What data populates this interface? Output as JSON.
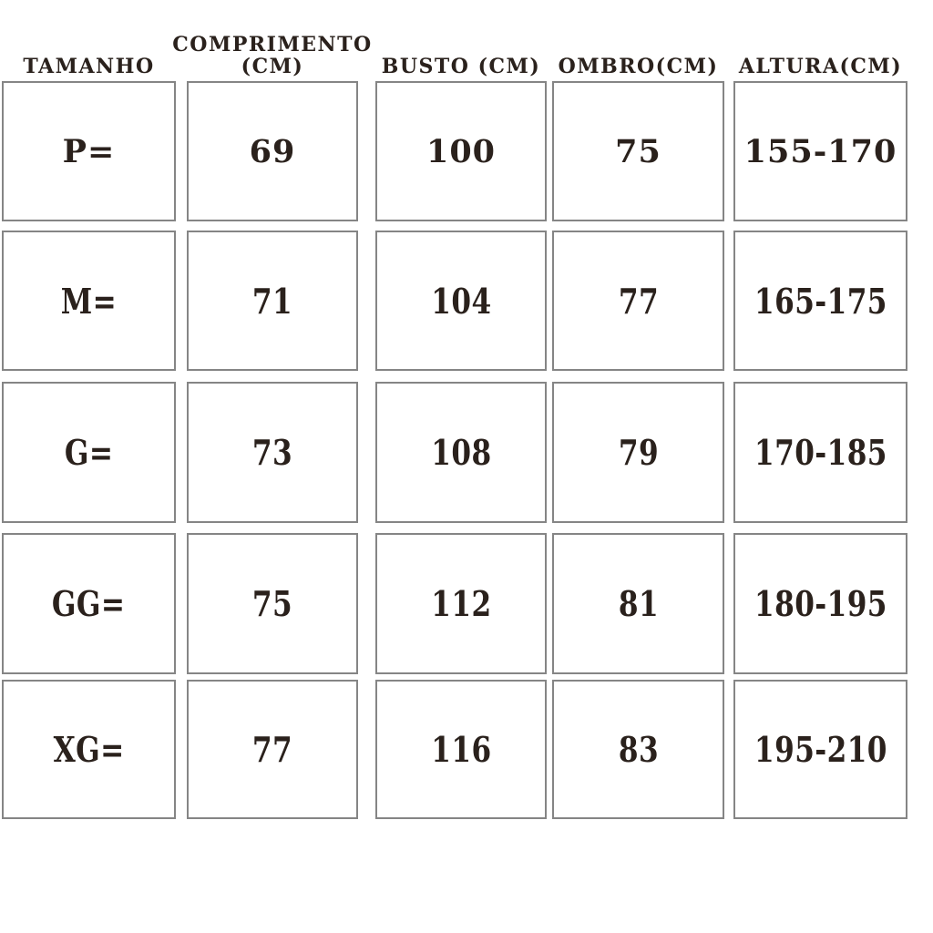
{
  "chart_data": {
    "type": "table",
    "title": "",
    "columns": [
      "TAMANHO",
      "COMPRIMENTO (CM)",
      "BUSTO (CM)",
      "OMBRO(CM)",
      "ALTURA(CM)"
    ],
    "rows": [
      [
        "P=",
        "69",
        "100",
        "75",
        "155-170"
      ],
      [
        "M=",
        "71",
        "104",
        "77",
        "165-175"
      ],
      [
        "G=",
        "73",
        "108",
        "79",
        "170-185"
      ],
      [
        "GG=",
        "75",
        "112",
        "81",
        "180-195"
      ],
      [
        "XG=",
        "77",
        "116",
        "83",
        "195-210"
      ]
    ]
  },
  "ui": {
    "headers": [
      {
        "line1": "TAMANHO"
      },
      {
        "line1": "COMPRIMENTO",
        "line2": "(CM)"
      },
      {
        "line1": "BUSTO (CM)"
      },
      {
        "line1": "OMBRO(CM)"
      },
      {
        "line1": "ALTURA(CM)"
      }
    ]
  },
  "colors": {
    "text": "#2a211c",
    "border": "#858585",
    "background": "#ffffff"
  }
}
